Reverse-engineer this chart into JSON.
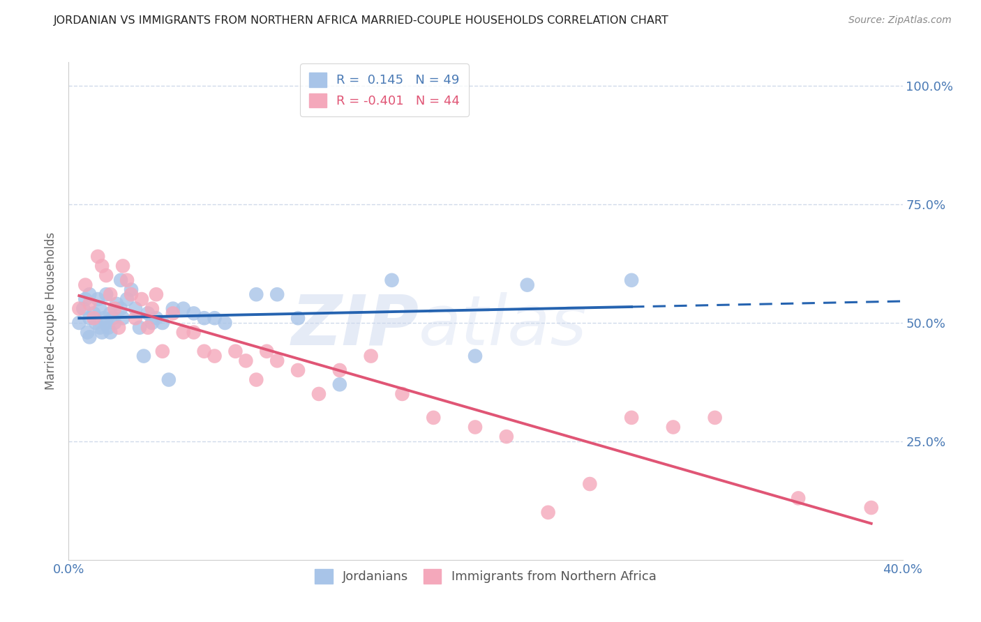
{
  "title": "JORDANIAN VS IMMIGRANTS FROM NORTHERN AFRICA MARRIED-COUPLE HOUSEHOLDS CORRELATION CHART",
  "source": "Source: ZipAtlas.com",
  "ylabel": "Married-couple Households",
  "xlim": [
    0.0,
    0.4
  ],
  "ylim": [
    0.0,
    1.05
  ],
  "yticks": [
    0.0,
    0.25,
    0.5,
    0.75,
    1.0
  ],
  "ytick_labels": [
    "",
    "25.0%",
    "50.0%",
    "75.0%",
    "100.0%"
  ],
  "xticks": [
    0.0,
    0.1,
    0.2,
    0.3,
    0.4
  ],
  "xtick_labels": [
    "0.0%",
    "",
    "",
    "",
    "40.0%"
  ],
  "R_blue": 0.145,
  "N_blue": 49,
  "R_pink": -0.401,
  "N_pink": 44,
  "blue_color": "#a8c4e8",
  "pink_color": "#f4a8bb",
  "line_blue": "#2563b0",
  "line_pink": "#e05575",
  "grid_color": "#d0daea",
  "text_color": "#4a7ab5",
  "background_color": "#ffffff",
  "watermark_zip": "ZIP",
  "watermark_atlas": "atlas",
  "blue_scatter_x": [
    0.005,
    0.007,
    0.008,
    0.009,
    0.01,
    0.01,
    0.01,
    0.012,
    0.013,
    0.014,
    0.015,
    0.015,
    0.016,
    0.017,
    0.018,
    0.018,
    0.019,
    0.02,
    0.02,
    0.021,
    0.022,
    0.023,
    0.025,
    0.025,
    0.026,
    0.028,
    0.03,
    0.032,
    0.034,
    0.036,
    0.038,
    0.04,
    0.042,
    0.045,
    0.048,
    0.05,
    0.055,
    0.06,
    0.065,
    0.07,
    0.075,
    0.09,
    0.1,
    0.11,
    0.13,
    0.155,
    0.195,
    0.22,
    0.27
  ],
  "blue_scatter_y": [
    0.5,
    0.53,
    0.55,
    0.48,
    0.51,
    0.56,
    0.47,
    0.52,
    0.5,
    0.55,
    0.49,
    0.53,
    0.48,
    0.51,
    0.5,
    0.56,
    0.49,
    0.52,
    0.48,
    0.51,
    0.5,
    0.54,
    0.59,
    0.53,
    0.51,
    0.55,
    0.57,
    0.53,
    0.49,
    0.43,
    0.52,
    0.5,
    0.51,
    0.5,
    0.38,
    0.53,
    0.53,
    0.52,
    0.51,
    0.51,
    0.5,
    0.56,
    0.56,
    0.51,
    0.37,
    0.59,
    0.43,
    0.58,
    0.59
  ],
  "pink_scatter_x": [
    0.005,
    0.008,
    0.01,
    0.012,
    0.014,
    0.016,
    0.018,
    0.02,
    0.022,
    0.024,
    0.026,
    0.028,
    0.03,
    0.032,
    0.035,
    0.038,
    0.04,
    0.042,
    0.045,
    0.05,
    0.055,
    0.06,
    0.065,
    0.07,
    0.08,
    0.085,
    0.09,
    0.095,
    0.1,
    0.11,
    0.12,
    0.13,
    0.145,
    0.16,
    0.175,
    0.195,
    0.21,
    0.23,
    0.25,
    0.27,
    0.29,
    0.31,
    0.35,
    0.385
  ],
  "pink_scatter_y": [
    0.53,
    0.58,
    0.54,
    0.51,
    0.64,
    0.62,
    0.6,
    0.56,
    0.53,
    0.49,
    0.62,
    0.59,
    0.56,
    0.51,
    0.55,
    0.49,
    0.53,
    0.56,
    0.44,
    0.52,
    0.48,
    0.48,
    0.44,
    0.43,
    0.44,
    0.42,
    0.38,
    0.44,
    0.42,
    0.4,
    0.35,
    0.4,
    0.43,
    0.35,
    0.3,
    0.28,
    0.26,
    0.1,
    0.16,
    0.3,
    0.28,
    0.3,
    0.13,
    0.11
  ]
}
